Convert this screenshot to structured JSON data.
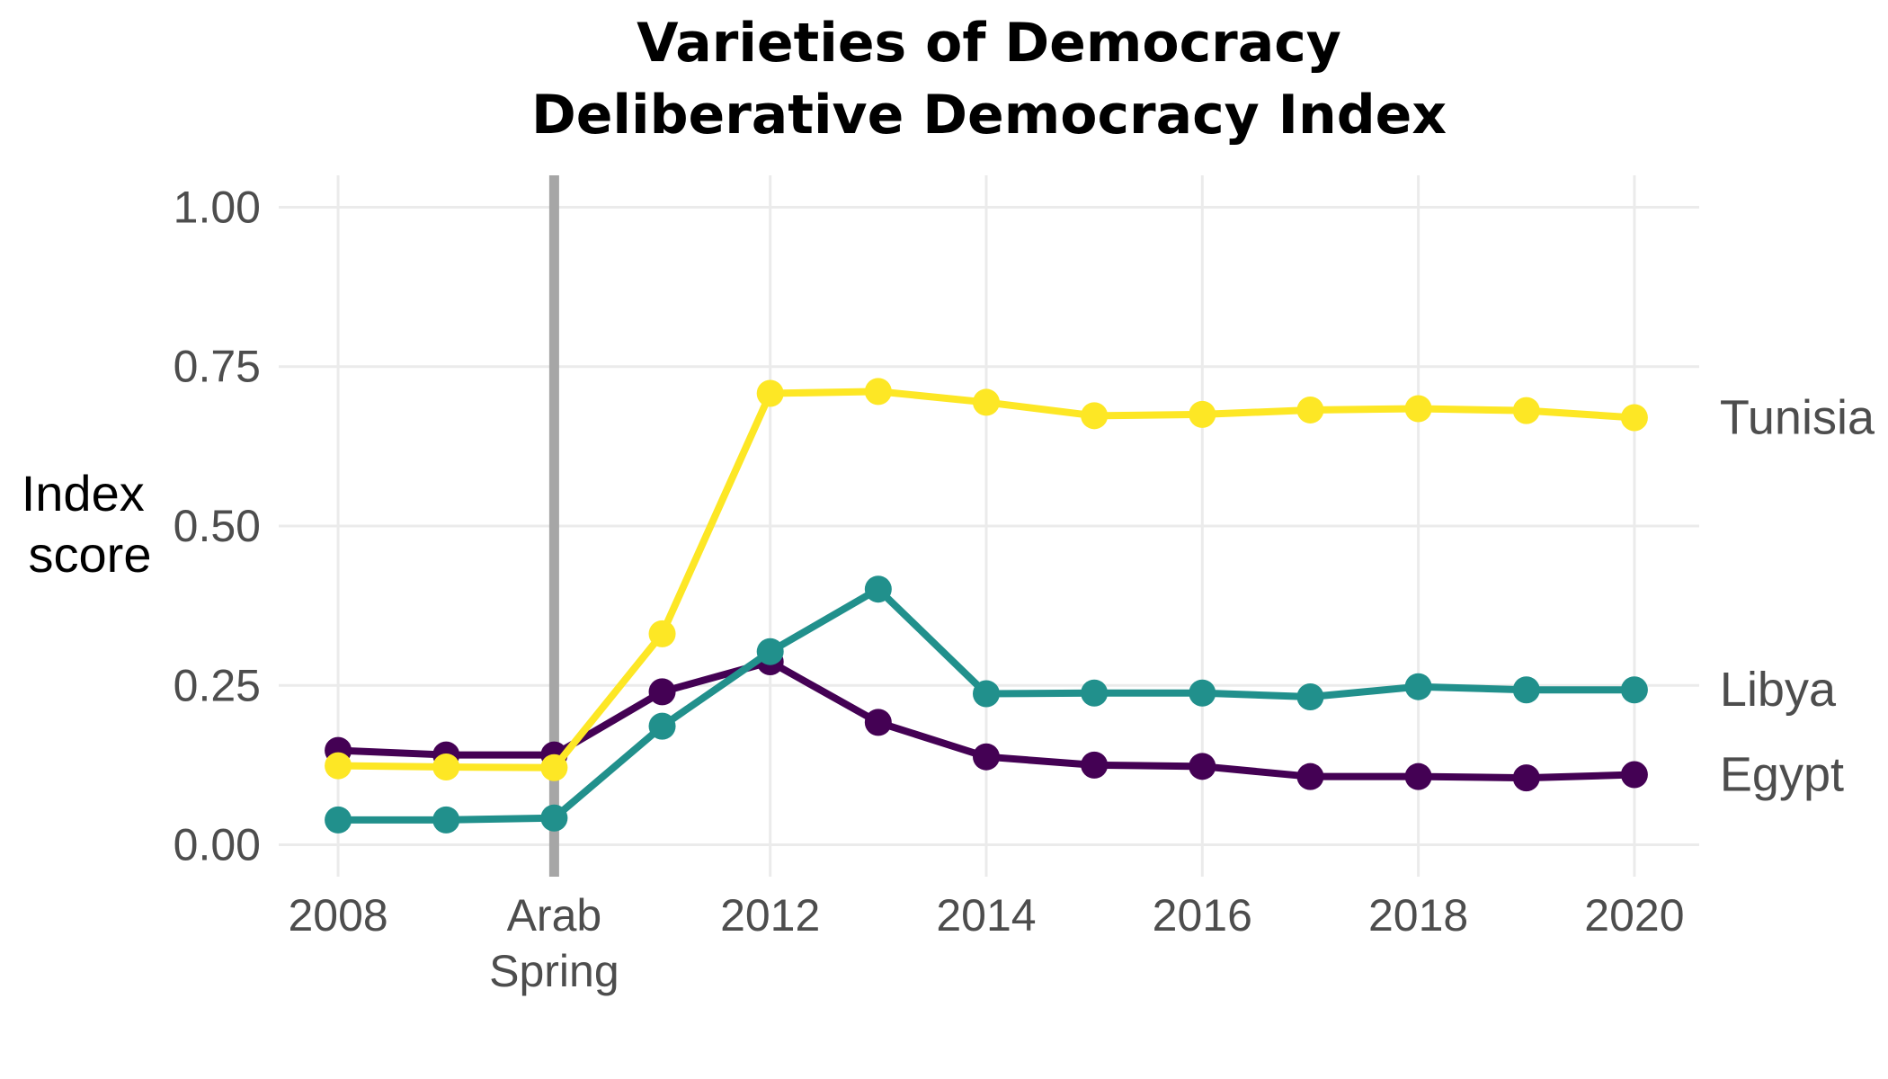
{
  "chart_data": {
    "type": "line",
    "title": "Varieties of Democracy",
    "subtitle": "Deliberative Democracy Index",
    "ylabel": [
      "Index",
      "score"
    ],
    "xlabel": "",
    "xlim": [
      2007.45,
      2020.6
    ],
    "ylim": [
      -0.05,
      1.05
    ],
    "x_ticks": [
      {
        "value": 2008,
        "label": [
          "2008"
        ]
      },
      {
        "value": 2010,
        "label": [
          "Arab",
          "Spring"
        ]
      },
      {
        "value": 2012,
        "label": [
          "2012"
        ]
      },
      {
        "value": 2014,
        "label": [
          "2014"
        ]
      },
      {
        "value": 2016,
        "label": [
          "2016"
        ]
      },
      {
        "value": 2018,
        "label": [
          "2018"
        ]
      },
      {
        "value": 2020,
        "label": [
          "2020"
        ]
      }
    ],
    "x_grid": [
      2008,
      2010,
      2012,
      2014,
      2016,
      2018,
      2020
    ],
    "y_ticks": [
      {
        "value": 0.0,
        "label": "0.00"
      },
      {
        "value": 0.25,
        "label": "0.25"
      },
      {
        "value": 0.5,
        "label": "0.50"
      },
      {
        "value": 0.75,
        "label": "0.75"
      },
      {
        "value": 1.0,
        "label": "1.00"
      }
    ],
    "grid": true,
    "legend": "direct labels at line ends",
    "event_line": {
      "x": 2010,
      "color": "#a6a6a6"
    },
    "x": [
      2008,
      2009,
      2010,
      2011,
      2012,
      2013,
      2014,
      2015,
      2016,
      2017,
      2018,
      2019,
      2020
    ],
    "series": [
      {
        "name": "Egypt",
        "color": "#440154",
        "values": [
          0.148,
          0.141,
          0.141,
          0.24,
          0.287,
          0.192,
          0.138,
          0.125,
          0.123,
          0.107,
          0.107,
          0.105,
          0.11
        ]
      },
      {
        "name": "Libya",
        "color": "#21908c",
        "values": [
          0.039,
          0.039,
          0.042,
          0.186,
          0.303,
          0.401,
          0.237,
          0.238,
          0.238,
          0.232,
          0.248,
          0.243,
          0.243
        ]
      },
      {
        "name": "Tunisia",
        "color": "#fde725",
        "values": [
          0.124,
          0.122,
          0.121,
          0.331,
          0.708,
          0.711,
          0.694,
          0.673,
          0.675,
          0.682,
          0.684,
          0.681,
          0.67
        ]
      }
    ]
  }
}
